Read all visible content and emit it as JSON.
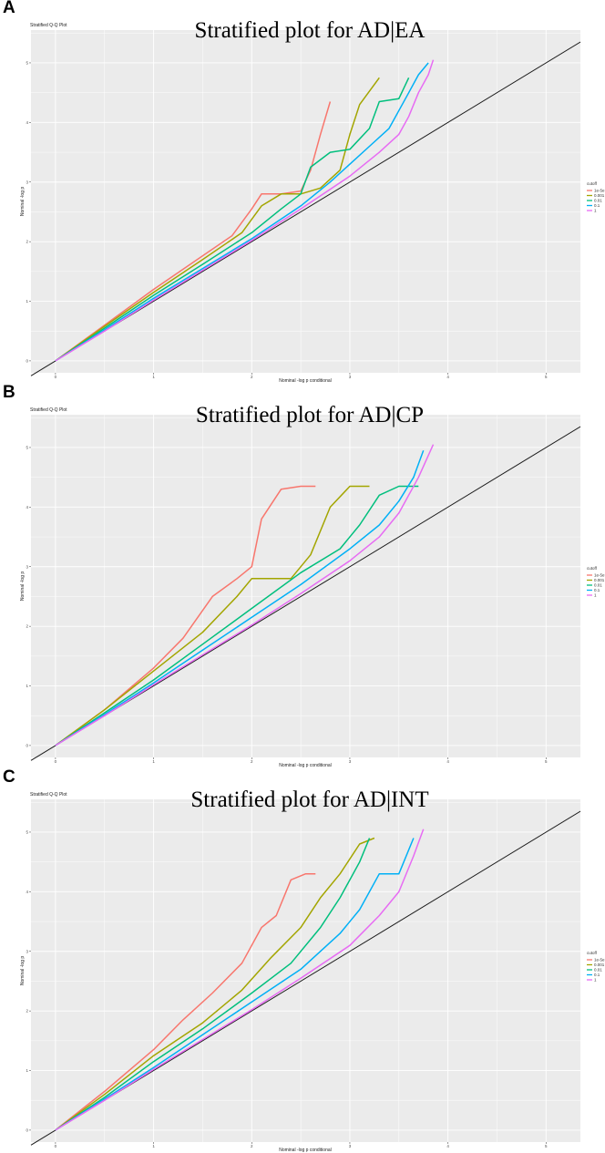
{
  "panels": [
    {
      "letter": "A",
      "chart_data": {
        "type": "line",
        "small_title": "Stratified Q-Q Plot",
        "title": "Stratified plot for AD|EA",
        "xlabel": "Nominal -log p conditional",
        "ylabel": "Nominal -log p",
        "xlim": [
          -0.25,
          5.35
        ],
        "ylim": [
          -0.2,
          5.55
        ],
        "xticks": [
          "0",
          "1",
          "2",
          "3",
          "4",
          "5"
        ],
        "yticks": [
          "0",
          "1",
          "2",
          "3",
          "4",
          "5"
        ],
        "grid": true,
        "legend_title": "cutoff",
        "legend_position": "right",
        "reference_line": {
          "x": [
            -0.25,
            5.35
          ],
          "y": [
            -0.25,
            5.35
          ]
        },
        "series": [
          {
            "name": "1e-5e",
            "color": "#F8766D",
            "x": [
              0,
              0.5,
              1.0,
              1.4,
              1.8,
              2.0,
              2.1,
              2.3,
              2.5,
              2.6,
              2.7,
              2.8
            ],
            "y": [
              0,
              0.6,
              1.2,
              1.65,
              2.1,
              2.55,
              2.8,
              2.8,
              2.85,
              3.2,
              3.8,
              4.35
            ]
          },
          {
            "name": "0.001",
            "color": "#A3A500",
            "x": [
              0,
              0.5,
              1.0,
              1.5,
              1.9,
              2.1,
              2.3,
              2.5,
              2.7,
              2.9,
              3.0,
              3.1,
              3.3
            ],
            "y": [
              0,
              0.58,
              1.15,
              1.7,
              2.15,
              2.6,
              2.8,
              2.8,
              2.9,
              3.2,
              3.8,
              4.3,
              4.75
            ]
          },
          {
            "name": "0.01",
            "color": "#00BF7D",
            "x": [
              0,
              0.5,
              1.0,
              1.5,
              2.0,
              2.3,
              2.5,
              2.6,
              2.8,
              3.0,
              3.2,
              3.3,
              3.5,
              3.6
            ],
            "y": [
              0,
              0.55,
              1.1,
              1.62,
              2.15,
              2.55,
              2.8,
              3.25,
              3.5,
              3.55,
              3.9,
              4.35,
              4.4,
              4.75
            ]
          },
          {
            "name": "0.1",
            "color": "#00B0F6",
            "x": [
              0,
              0.5,
              1.0,
              1.5,
              2.0,
              2.5,
              2.8,
              3.0,
              3.2,
              3.4,
              3.5,
              3.6,
              3.7,
              3.8
            ],
            "y": [
              0,
              0.52,
              1.05,
              1.55,
              2.05,
              2.6,
              3.0,
              3.3,
              3.6,
              3.9,
              4.2,
              4.5,
              4.8,
              5.0
            ]
          },
          {
            "name": "1",
            "color": "#E76BF3",
            "x": [
              0,
              0.5,
              1.0,
              1.5,
              2.0,
              2.5,
              3.0,
              3.3,
              3.5,
              3.6,
              3.7,
              3.8,
              3.85
            ],
            "y": [
              0,
              0.5,
              1.02,
              1.52,
              2.02,
              2.55,
              3.1,
              3.5,
              3.8,
              4.1,
              4.5,
              4.8,
              5.05
            ]
          }
        ]
      }
    },
    {
      "letter": "B",
      "chart_data": {
        "type": "line",
        "small_title": "Stratified Q-Q Plot",
        "title": "Stratified plot for AD|CP",
        "xlabel": "Nominal -log p conditional",
        "ylabel": "Nominal -log p",
        "xlim": [
          -0.25,
          5.35
        ],
        "ylim": [
          -0.2,
          5.55
        ],
        "xticks": [
          "0",
          "1",
          "2",
          "3",
          "4",
          "5"
        ],
        "yticks": [
          "0",
          "1",
          "2",
          "3",
          "4",
          "5"
        ],
        "grid": true,
        "legend_title": "cutoff",
        "legend_position": "right",
        "reference_line": {
          "x": [
            -0.25,
            5.35
          ],
          "y": [
            -0.25,
            5.35
          ]
        },
        "series": [
          {
            "name": "1e-5e",
            "color": "#F8766D",
            "x": [
              0,
              0.5,
              1.0,
              1.3,
              1.6,
              1.85,
              2.0,
              2.1,
              2.3,
              2.5,
              2.65
            ],
            "y": [
              0,
              0.6,
              1.3,
              1.8,
              2.5,
              2.8,
              3.0,
              3.8,
              4.3,
              4.35,
              4.35
            ]
          },
          {
            "name": "0.001",
            "color": "#A3A500",
            "x": [
              0,
              0.5,
              1.0,
              1.5,
              1.85,
              2.0,
              2.4,
              2.6,
              2.8,
              3.0,
              3.2
            ],
            "y": [
              0,
              0.6,
              1.25,
              1.9,
              2.5,
              2.8,
              2.8,
              3.2,
              4.0,
              4.35,
              4.35
            ]
          },
          {
            "name": "0.01",
            "color": "#00BF7D",
            "x": [
              0,
              0.5,
              1.0,
              1.5,
              2.0,
              2.5,
              2.9,
              3.1,
              3.3,
              3.5,
              3.7
            ],
            "y": [
              0,
              0.55,
              1.1,
              1.7,
              2.3,
              2.9,
              3.3,
              3.7,
              4.2,
              4.35,
              4.35
            ]
          },
          {
            "name": "0.1",
            "color": "#00B0F6",
            "x": [
              0,
              0.5,
              1.0,
              1.5,
              2.0,
              2.5,
              3.0,
              3.3,
              3.5,
              3.65,
              3.75
            ],
            "y": [
              0,
              0.52,
              1.05,
              1.6,
              2.15,
              2.7,
              3.3,
              3.7,
              4.1,
              4.5,
              4.95
            ]
          },
          {
            "name": "1",
            "color": "#E76BF3",
            "x": [
              0,
              0.5,
              1.0,
              1.5,
              2.0,
              2.5,
              3.0,
              3.3,
              3.5,
              3.7,
              3.85
            ],
            "y": [
              0,
              0.5,
              1.02,
              1.52,
              2.02,
              2.55,
              3.1,
              3.5,
              3.9,
              4.5,
              5.05
            ]
          }
        ]
      }
    },
    {
      "letter": "C",
      "chart_data": {
        "type": "line",
        "small_title": "Stratified Q-Q Plot",
        "title": "Stratified plot for AD|INT",
        "xlabel": "Nominal -log p conditional",
        "ylabel": "Nominal -log p",
        "xlim": [
          -0.25,
          5.35
        ],
        "ylim": [
          -0.2,
          5.55
        ],
        "xticks": [
          "0",
          "1",
          "2",
          "3",
          "4",
          "5"
        ],
        "yticks": [
          "0",
          "1",
          "2",
          "3",
          "4",
          "5"
        ],
        "grid": true,
        "legend_title": "cutoff",
        "legend_position": "right",
        "reference_line": {
          "x": [
            -0.25,
            5.35
          ],
          "y": [
            -0.25,
            5.35
          ]
        },
        "series": [
          {
            "name": "1e-5e",
            "color": "#F8766D",
            "x": [
              0,
              0.5,
              1.0,
              1.3,
              1.6,
              1.9,
              2.1,
              2.25,
              2.4,
              2.55,
              2.65
            ],
            "y": [
              0,
              0.65,
              1.35,
              1.85,
              2.3,
              2.8,
              3.4,
              3.6,
              4.2,
              4.3,
              4.3
            ]
          },
          {
            "name": "0.001",
            "color": "#A3A500",
            "x": [
              0,
              0.5,
              1.0,
              1.5,
              1.9,
              2.2,
              2.5,
              2.7,
              2.9,
              3.1,
              3.25
            ],
            "y": [
              0,
              0.6,
              1.25,
              1.8,
              2.35,
              2.9,
              3.4,
              3.9,
              4.3,
              4.8,
              4.9
            ]
          },
          {
            "name": "0.01",
            "color": "#00BF7D",
            "x": [
              0,
              0.5,
              1.0,
              1.5,
              2.0,
              2.4,
              2.7,
              2.9,
              3.1,
              3.2
            ],
            "y": [
              0,
              0.55,
              1.15,
              1.7,
              2.3,
              2.8,
              3.4,
              3.9,
              4.5,
              4.9
            ]
          },
          {
            "name": "0.1",
            "color": "#00B0F6",
            "x": [
              0,
              0.5,
              1.0,
              1.5,
              2.0,
              2.5,
              2.9,
              3.1,
              3.3,
              3.5,
              3.65
            ],
            "y": [
              0,
              0.52,
              1.05,
              1.6,
              2.15,
              2.7,
              3.3,
              3.7,
              4.3,
              4.3,
              4.9
            ]
          },
          {
            "name": "1",
            "color": "#E76BF3",
            "x": [
              0,
              0.5,
              1.0,
              1.5,
              2.0,
              2.5,
              3.0,
              3.3,
              3.5,
              3.65,
              3.75
            ],
            "y": [
              0,
              0.5,
              1.02,
              1.52,
              2.02,
              2.55,
              3.1,
              3.6,
              4.0,
              4.6,
              5.05
            ]
          }
        ]
      }
    }
  ]
}
